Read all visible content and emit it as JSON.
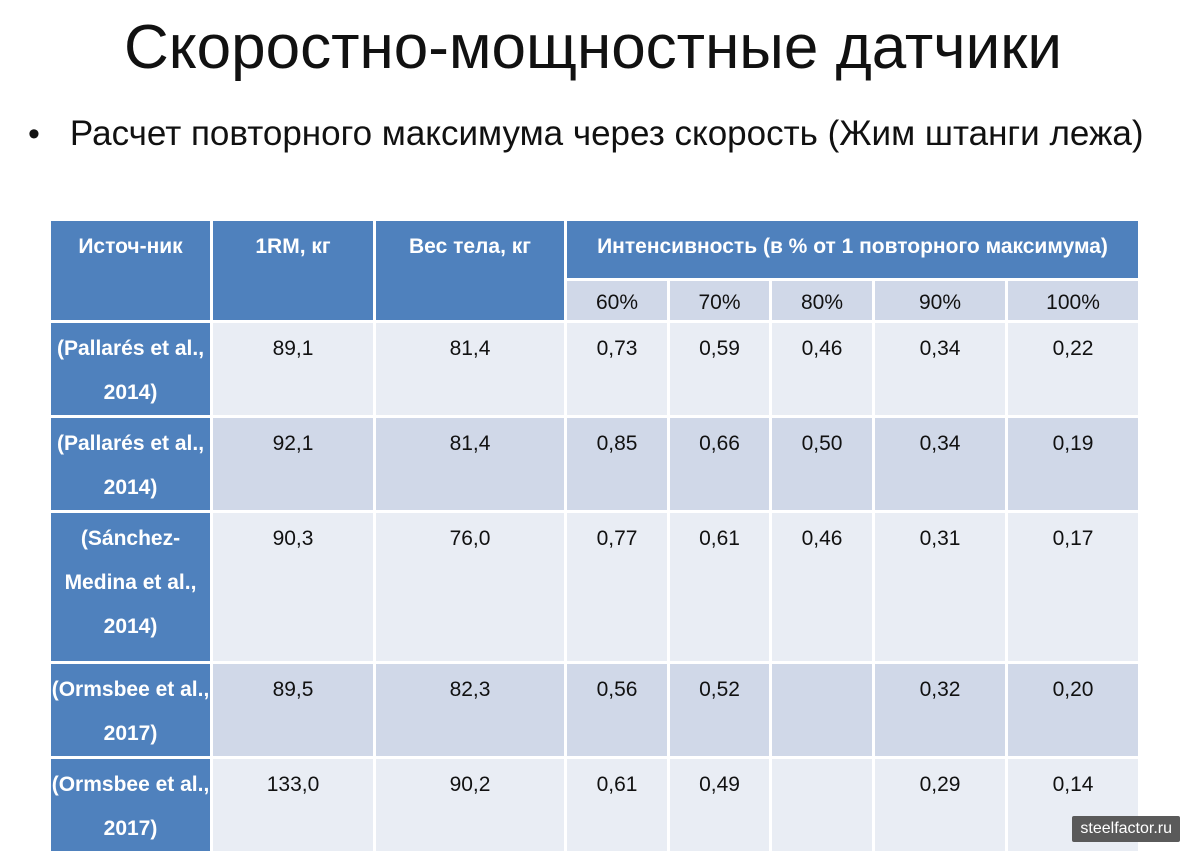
{
  "title": "Скоростно-мощностные датчики",
  "bullet": "Расчет повторного максимума через скорость (Жим штанги лежа)",
  "table": {
    "headers": {
      "source": "Источ-ник",
      "rm": "1RM, кг",
      "weight": "Вес тела, кг",
      "intensity": "Интенсивность (в % от 1 повторного максимума)"
    },
    "percent_columns": [
      "60%",
      "70%",
      "80%",
      "90%",
      "100%"
    ],
    "rows": [
      {
        "source": "(Pallarés et al., 2014)",
        "rm": "89,1",
        "weight": "81,4",
        "values": [
          "0,73",
          "0,59",
          "0,46",
          "0,34",
          "0,22"
        ]
      },
      {
        "source": "(Pallarés et al., 2014)",
        "rm": "92,1",
        "weight": "81,4",
        "values": [
          "0,85",
          "0,66",
          "0,50",
          "0,34",
          "0,19"
        ]
      },
      {
        "source": "(Sánchez-Medina et al., 2014)",
        "rm": "90,3",
        "weight": "76,0",
        "values": [
          "0,77",
          "0,61",
          "0,46",
          "0,31",
          "0,17"
        ]
      },
      {
        "source": "(Ormsbee et al., 2017)",
        "rm": "89,5",
        "weight": "82,3",
        "values": [
          "0,56",
          "0,52",
          "",
          "0,32",
          "0,20"
        ]
      },
      {
        "source": "(Ormsbee et al., 2017)",
        "rm": "133,0",
        "weight": "90,2",
        "values": [
          "0,61",
          "0,49",
          "",
          "0,29",
          "0,14"
        ]
      }
    ]
  },
  "watermark": "steelfactor.ru",
  "colors": {
    "header_blue": "#4f81bd",
    "row_light": "#e9edf4",
    "row_dark": "#d0d8e8"
  }
}
